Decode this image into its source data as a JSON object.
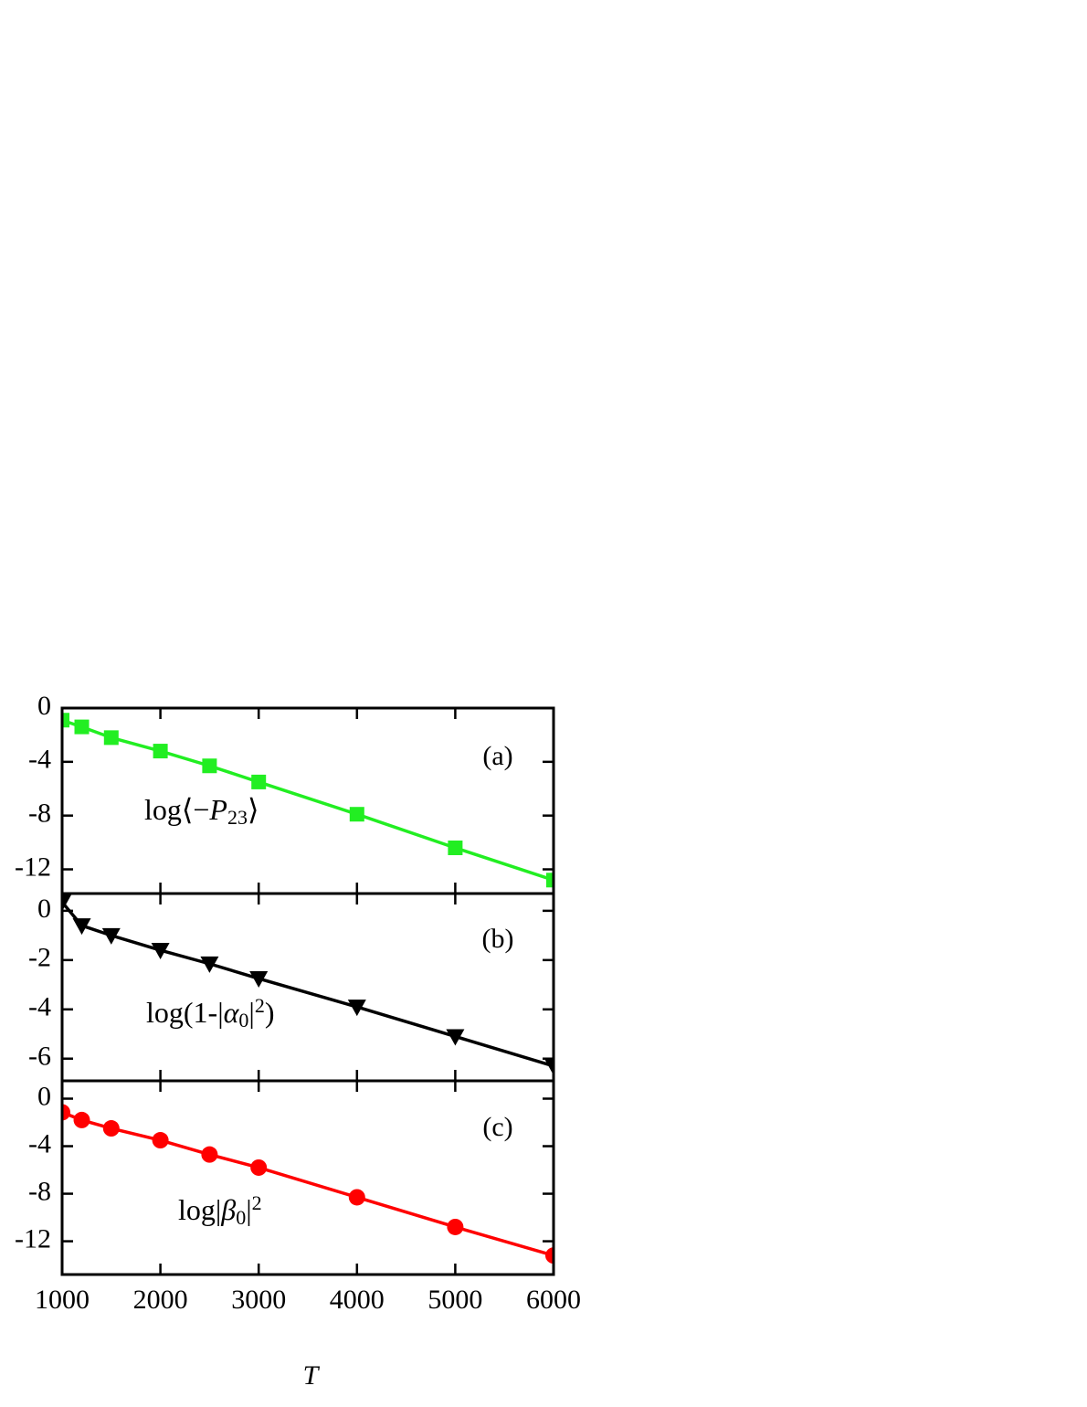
{
  "chart_data": [
    {
      "type": "line",
      "label": "(a)",
      "annotation": [
        {
          "text": "log⟨−"
        },
        {
          "text": "P",
          "style": "italic"
        },
        {
          "text": "23",
          "style": "sub"
        },
        {
          "text": "⟩"
        }
      ],
      "x": [
        1000,
        1200,
        1500,
        2000,
        2500,
        3000,
        4000,
        5000,
        6000
      ],
      "series": [
        {
          "color": "#22ee22",
          "marker": "square",
          "values": [
            -0.9,
            -1.4,
            -2.2,
            -3.2,
            -4.3,
            -5.5,
            -7.9,
            -10.4,
            -12.8
          ]
        }
      ],
      "xlim": [
        1000,
        6000
      ],
      "xticks": [
        1000,
        2000,
        3000,
        4000,
        5000,
        6000
      ],
      "ylim": [
        -13.8,
        0
      ],
      "yticks": [
        0,
        -4,
        -8,
        -12
      ]
    },
    {
      "type": "line",
      "label": "(b)",
      "annotation": [
        {
          "text": "log(1-|"
        },
        {
          "text": "α",
          "style": "italic"
        },
        {
          "text": "0",
          "style": "sub"
        },
        {
          "text": "|"
        },
        {
          "text": "2",
          "style": "sup"
        },
        {
          "text": ")"
        }
      ],
      "x": [
        1000,
        1200,
        1500,
        2000,
        2500,
        3000,
        4000,
        5000,
        6000
      ],
      "series": [
        {
          "color": "#000000",
          "marker": "triangle-down",
          "values": [
            0.35,
            -0.6,
            -1.0,
            -1.6,
            -2.15,
            -2.75,
            -3.9,
            -5.1,
            -6.3
          ]
        }
      ],
      "xlim": [
        1000,
        6000
      ],
      "xticks": [
        1000,
        2000,
        3000,
        4000,
        5000,
        6000
      ],
      "ylim": [
        -6.9,
        0.7
      ],
      "yticks": [
        0,
        -2,
        -4,
        -6
      ]
    },
    {
      "type": "line",
      "label": "(c)",
      "annotation": [
        {
          "text": "log|"
        },
        {
          "text": "β",
          "style": "italic"
        },
        {
          "text": "0",
          "style": "sub"
        },
        {
          "text": "|"
        },
        {
          "text": "2",
          "style": "sup"
        }
      ],
      "x": [
        1000,
        1200,
        1500,
        2000,
        2500,
        3000,
        4000,
        5000,
        6000
      ],
      "series": [
        {
          "color": "#ff0000",
          "marker": "circle",
          "values": [
            -1.15,
            -1.8,
            -2.5,
            -3.5,
            -4.7,
            -5.8,
            -8.3,
            -10.8,
            -13.2
          ]
        }
      ],
      "xlim": [
        1000,
        6000
      ],
      "xticks": [
        1000,
        2000,
        3000,
        4000,
        5000,
        6000
      ],
      "ylim": [
        -14.8,
        1.5
      ],
      "yticks": [
        0,
        -4,
        -8,
        -12
      ],
      "xlabel": "T"
    }
  ]
}
